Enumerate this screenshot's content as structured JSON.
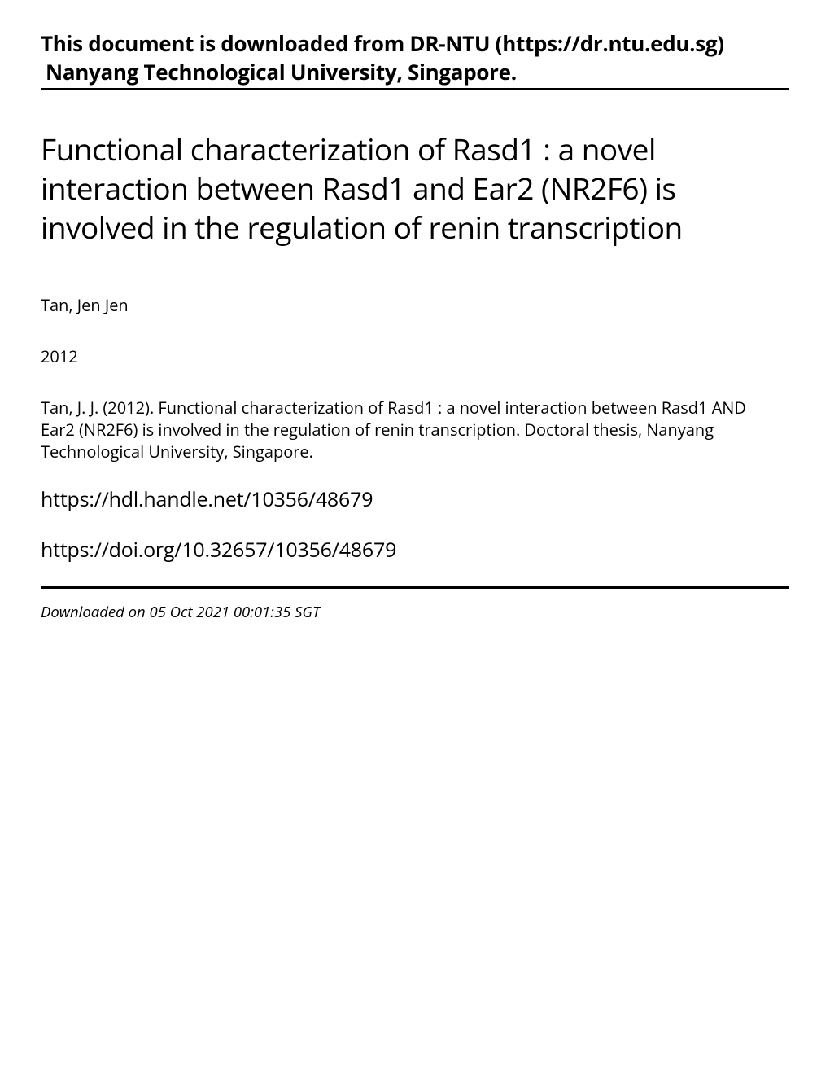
{
  "header": {
    "line1": "This document is downloaded from DR-NTU (https://dr.ntu.edu.sg)",
    "line2": "Nanyang Technological University, Singapore."
  },
  "title": "Functional characterization of Rasd1 : a novel interaction between Rasd1 and Ear2 (NR2F6) is involved in the regulation of renin transcription",
  "author": "Tan, Jen Jen",
  "year": "2012",
  "citation": "Tan, J. J. (2012). Functional characterization of Rasd1 : a novel interaction between Rasd1 AND Ear2 (NR2F6) is involved in the regulation of renin transcription. Doctoral thesis, Nanyang Technological University, Singapore.",
  "handle_url": "https://hdl.handle.net/10356/48679",
  "doi_url": "https://doi.org/10.32657/10356/48679",
  "download_footer": "Downloaded on 05 Oct 2021 00:01:35 SGT",
  "colors": {
    "text": "#000000",
    "background": "#ffffff",
    "divider": "#000000"
  },
  "typography": {
    "header_fontsize": 26,
    "header_fontweight": 700,
    "title_fontsize": 37,
    "title_fontweight": 400,
    "body_fontsize": 20,
    "url_fontsize": 25,
    "footer_fontsize": 18.5,
    "footer_style": "italic"
  }
}
